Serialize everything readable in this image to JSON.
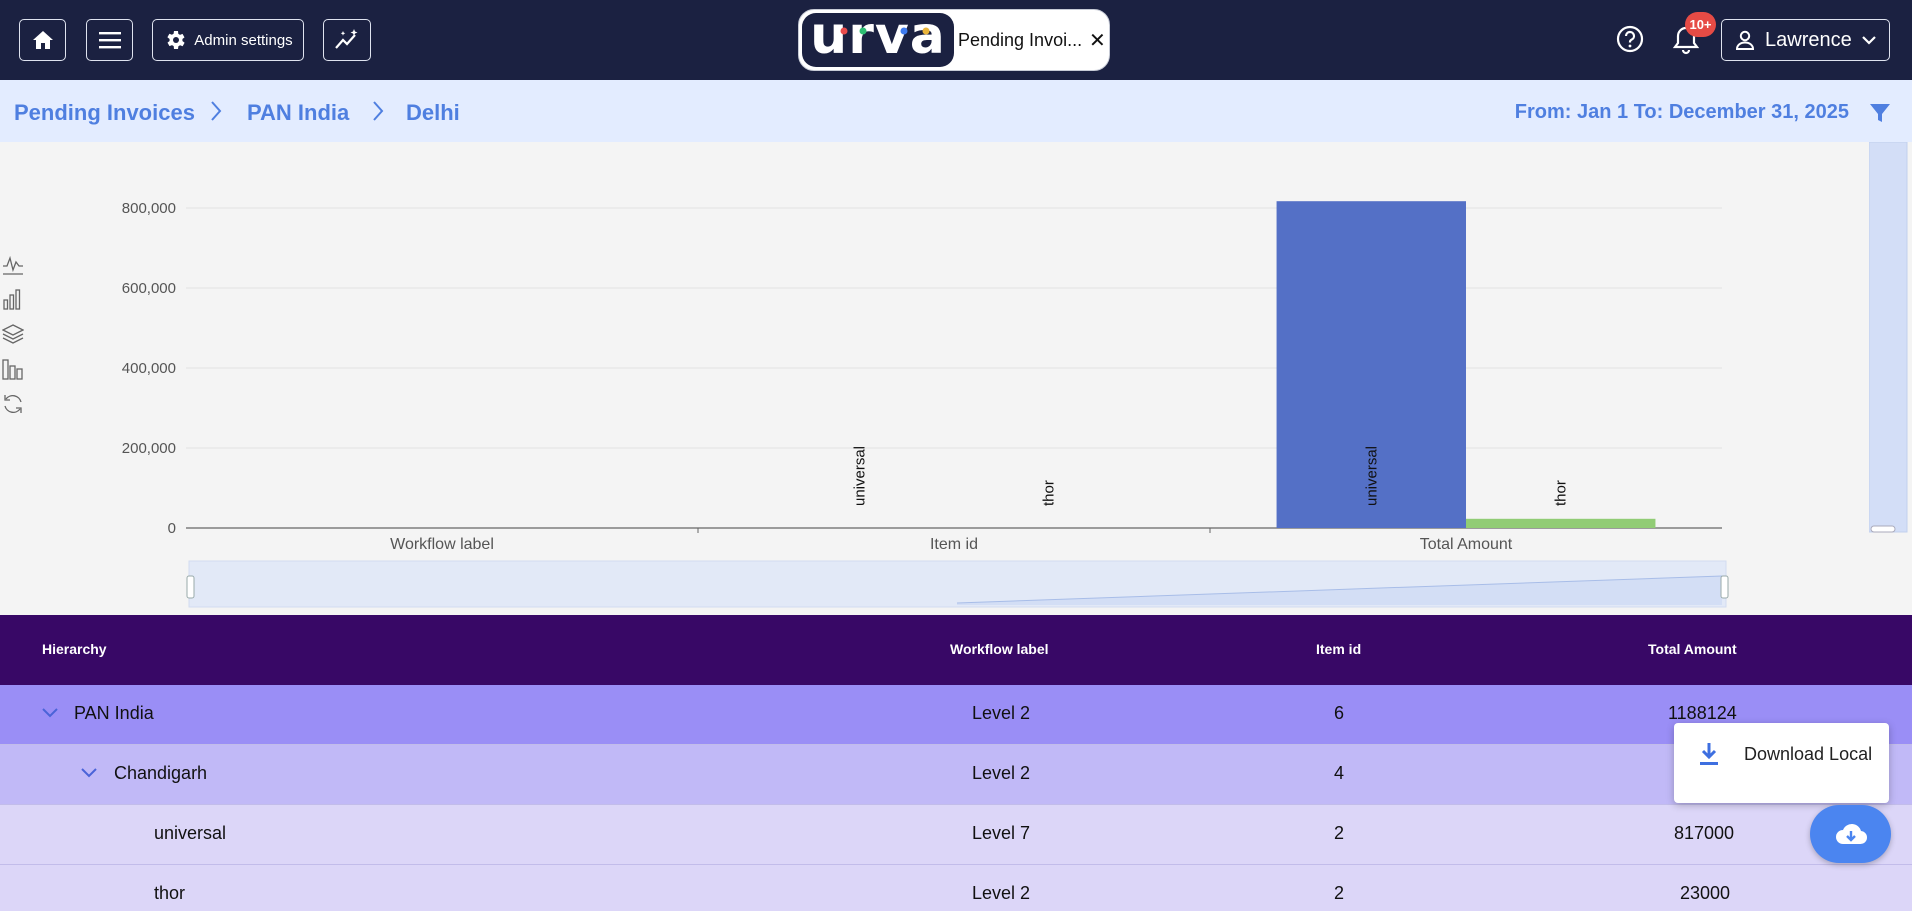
{
  "topbar": {
    "admin_label": "Admin settings",
    "tab_label": "Pending Invoi...",
    "tab_close": "✕",
    "logo_text": "urva",
    "notification_count": "10+",
    "user_name": "Lawrence"
  },
  "breadcrumb": {
    "items": [
      "Pending Invoices",
      "PAN India",
      "Delhi"
    ],
    "date_range": "From: Jan 1 To: December 31, 2025"
  },
  "chart_data": {
    "type": "bar",
    "categories": [
      "Workflow label",
      "Item id",
      "Total Amount"
    ],
    "series": [
      {
        "name": "universal",
        "values": [
          0,
          2,
          817000
        ],
        "color": "#5470c6"
      },
      {
        "name": "thor",
        "values": [
          0,
          2,
          23000
        ],
        "color": "#91cc75"
      }
    ],
    "ylim": [
      0,
      800000
    ],
    "yticks": [
      "0",
      "200,000",
      "400,000",
      "600,000",
      "800,000"
    ],
    "grid": true
  },
  "table": {
    "headers": [
      "Hierarchy",
      "Workflow label",
      "Item id",
      "Total Amount"
    ],
    "rows": [
      {
        "name": "PAN India",
        "workflow": "Level 2",
        "item_id": "6",
        "amount": "1188124"
      },
      {
        "name": "Chandigarh",
        "workflow": "Level 2",
        "item_id": "4",
        "amount": ""
      },
      {
        "name": "universal",
        "workflow": "Level 7",
        "item_id": "2",
        "amount": "817000"
      },
      {
        "name": "thor",
        "workflow": "Level 2",
        "item_id": "2",
        "amount": "23000"
      }
    ]
  },
  "download": {
    "label": "Download Local"
  },
  "colors": {
    "topbar": "#1b2141",
    "accent": "#4f7fe0",
    "table_header": "#380866",
    "badge": "#e64b45"
  }
}
